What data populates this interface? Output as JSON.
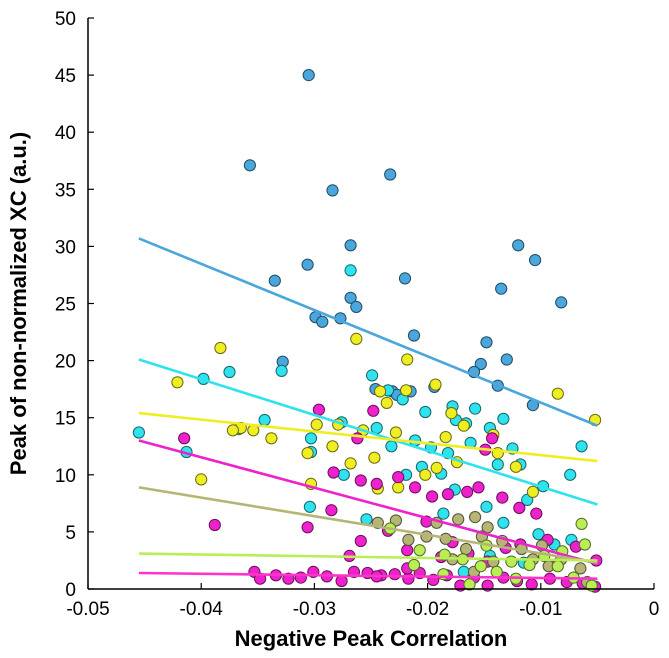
{
  "chart_data": {
    "type": "scatter",
    "title": "",
    "xlabel": "Negative Peak Correlation",
    "ylabel": "Peak of non-normalized XC (a.u.)",
    "xlim": [
      -0.05,
      0
    ],
    "ylim": [
      0,
      50
    ],
    "xticks": [
      -0.05,
      -0.04,
      -0.03,
      -0.02,
      -0.01,
      0
    ],
    "xtick_labels": [
      "-0.05",
      "-0.04",
      "-0.03",
      "-0.02",
      "-0.01",
      "0"
    ],
    "yticks": [
      0,
      5,
      10,
      15,
      20,
      25,
      30,
      35,
      40,
      45,
      50
    ],
    "ytick_labels": [
      "0",
      "5",
      "10",
      "15",
      "20",
      "25",
      "30",
      "35",
      "40",
      "45",
      "50"
    ],
    "grid": false,
    "legend": "none",
    "series": [
      {
        "color": "#4aa6dc",
        "fit_line": {
          "x": [
            -0.0455,
            -0.005
          ],
          "y": [
            30.7,
            14.3
          ]
        },
        "points": [
          [
            -0.0305,
            45
          ],
          [
            -0.0357,
            37.1
          ],
          [
            -0.0233,
            36.3
          ],
          [
            -0.0284,
            34.9
          ],
          [
            -0.0268,
            30.1
          ],
          [
            -0.0306,
            28.4
          ],
          [
            -0.012,
            30.1
          ],
          [
            -0.0105,
            28.8
          ],
          [
            -0.0335,
            27
          ],
          [
            -0.022,
            27.2
          ],
          [
            -0.0135,
            26.3
          ],
          [
            -0.0082,
            25.1
          ],
          [
            -0.0268,
            25.5
          ],
          [
            -0.0263,
            24.7
          ],
          [
            -0.0299,
            23.8
          ],
          [
            -0.0293,
            23.4
          ],
          [
            -0.0277,
            23.7
          ],
          [
            -0.0212,
            22.2
          ],
          [
            -0.0148,
            21.6
          ],
          [
            -0.013,
            20.1
          ],
          [
            -0.0153,
            19.7
          ],
          [
            -0.0328,
            19.9
          ],
          [
            -0.0159,
            19
          ],
          [
            -0.0194,
            17.7
          ],
          [
            -0.0246,
            17.5
          ],
          [
            -0.0231,
            17.3
          ],
          [
            -0.0227,
            17
          ],
          [
            -0.0138,
            17.8
          ],
          [
            -0.0107,
            16.1
          ],
          [
            -0.0215,
            17.3
          ]
        ]
      },
      {
        "color": "#2ee2ee",
        "fit_line": {
          "x": [
            -0.0455,
            -0.005
          ],
          "y": [
            20.1,
            7.4
          ]
        },
        "points": [
          [
            -0.0268,
            27.9
          ],
          [
            -0.0329,
            19.1
          ],
          [
            -0.0375,
            19
          ],
          [
            -0.0398,
            18.4
          ],
          [
            -0.0249,
            18.7
          ],
          [
            -0.0235,
            17.4
          ],
          [
            -0.0222,
            16.6
          ],
          [
            -0.0178,
            16
          ],
          [
            -0.0202,
            15.5
          ],
          [
            -0.0158,
            15.8
          ],
          [
            -0.0175,
            14.8
          ],
          [
            -0.0166,
            14.5
          ],
          [
            -0.0145,
            14.1
          ],
          [
            -0.0133,
            14.9
          ],
          [
            -0.0162,
            12.8
          ],
          [
            -0.0245,
            14.1
          ],
          [
            -0.0276,
            14.6
          ],
          [
            -0.0303,
            13.2
          ],
          [
            -0.0344,
            14.8
          ],
          [
            -0.0367,
            14
          ],
          [
            -0.0455,
            13.7
          ],
          [
            -0.0211,
            13
          ],
          [
            -0.0197,
            12.4
          ],
          [
            -0.0232,
            12.5
          ],
          [
            -0.0182,
            11.9
          ],
          [
            -0.0125,
            12.3
          ],
          [
            -0.0118,
            10.9
          ],
          [
            -0.0138,
            10.9
          ],
          [
            -0.0188,
            10.1
          ],
          [
            -0.0205,
            10.7
          ],
          [
            -0.0219,
            10
          ],
          [
            -0.0274,
            10
          ],
          [
            -0.0303,
            12
          ],
          [
            -0.0413,
            12
          ],
          [
            -0.0064,
            12.5
          ],
          [
            -0.0074,
            10
          ],
          [
            -0.0098,
            9
          ],
          [
            -0.0176,
            8.7
          ],
          [
            -0.0112,
            7.8
          ],
          [
            -0.0148,
            7.2
          ],
          [
            -0.0254,
            6.1
          ],
          [
            -0.0304,
            7.2
          ],
          [
            -0.0186,
            6.6
          ],
          [
            -0.0133,
            5.8
          ],
          [
            -0.0102,
            4.8
          ],
          [
            -0.0088,
            3.9
          ],
          [
            -0.0073,
            4.3
          ],
          [
            -0.0145,
            2.9
          ],
          [
            -0.0168,
            1.5
          ],
          [
            -0.0115,
            2.3
          ]
        ]
      },
      {
        "color": "#eeee22",
        "fit_line": {
          "x": [
            -0.0455,
            -0.005
          ],
          "y": [
            15.4,
            11.2
          ]
        },
        "points": [
          [
            -0.0383,
            21.1
          ],
          [
            -0.0421,
            18.1
          ],
          [
            -0.0263,
            21.9
          ],
          [
            -0.0218,
            20.1
          ],
          [
            -0.0219,
            17.4
          ],
          [
            -0.0242,
            17.3
          ],
          [
            -0.0193,
            17.9
          ],
          [
            -0.0236,
            16.3
          ],
          [
            -0.0179,
            15.4
          ],
          [
            -0.0168,
            14.3
          ],
          [
            -0.0228,
            13.7
          ],
          [
            -0.0257,
            13.9
          ],
          [
            -0.0279,
            14.4
          ],
          [
            -0.0298,
            14.4
          ],
          [
            -0.0365,
            14.1
          ],
          [
            -0.0372,
            13.9
          ],
          [
            -0.0354,
            13.9
          ],
          [
            -0.0338,
            13.2
          ],
          [
            -0.0184,
            13.3
          ],
          [
            -0.0142,
            13.5
          ],
          [
            -0.0138,
            11.9
          ],
          [
            -0.0122,
            10.7
          ],
          [
            -0.0192,
            10.6
          ],
          [
            -0.0202,
            10
          ],
          [
            -0.0247,
            11.5
          ],
          [
            -0.0268,
            11
          ],
          [
            -0.0284,
            12.5
          ],
          [
            -0.0306,
            11.9
          ],
          [
            -0.04,
            9.6
          ],
          [
            -0.0085,
            17.1
          ],
          [
            -0.0052,
            14.8
          ],
          [
            -0.0107,
            8.5
          ],
          [
            -0.0226,
            8.9
          ],
          [
            -0.0244,
            8.8
          ],
          [
            -0.0174,
            11.1
          ],
          [
            -0.0303,
            9.2
          ]
        ]
      },
      {
        "color": "#ee22cc",
        "fit_line": {
          "x": [
            -0.0455,
            -0.005
          ],
          "y": [
            13,
            2.2
          ]
        },
        "points": [
          [
            -0.0296,
            15.7
          ],
          [
            -0.0248,
            15.6
          ],
          [
            -0.0262,
            13.2
          ],
          [
            -0.0415,
            13.2
          ],
          [
            -0.0388,
            5.6
          ],
          [
            -0.0283,
            10.2
          ],
          [
            -0.0259,
            9.5
          ],
          [
            -0.0245,
            9.2
          ],
          [
            -0.0226,
            9.8
          ],
          [
            -0.0211,
            8.9
          ],
          [
            -0.0196,
            8.1
          ],
          [
            -0.0182,
            8.3
          ],
          [
            -0.0165,
            8.5
          ],
          [
            -0.0149,
            12.2
          ],
          [
            -0.0143,
            13.2
          ],
          [
            -0.0155,
            8.9
          ],
          [
            -0.0134,
            8
          ],
          [
            -0.0119,
            7.1
          ],
          [
            -0.0104,
            6.6
          ],
          [
            -0.0306,
            5.4
          ],
          [
            -0.0285,
            6.9
          ],
          [
            -0.0235,
            5.1
          ],
          [
            -0.0201,
            5.9
          ],
          [
            -0.0178,
            4.1
          ],
          [
            -0.0164,
            3.1
          ],
          [
            -0.0147,
            2.4
          ],
          [
            -0.0118,
            3.9
          ],
          [
            -0.0094,
            4.3
          ],
          [
            -0.0085,
            2.2
          ],
          [
            -0.0069,
            3.7
          ],
          [
            -0.0051,
            2.5
          ],
          [
            -0.0218,
            3.4
          ],
          [
            -0.0259,
            4.2
          ],
          [
            -0.0188,
            2.8
          ],
          [
            -0.0131,
            3.6
          ],
          [
            -0.0353,
            1.5
          ],
          [
            -0.0348,
            0.9
          ],
          [
            -0.0334,
            1.2
          ],
          [
            -0.0323,
            0.9
          ],
          [
            -0.0312,
            1
          ],
          [
            -0.0301,
            1.5
          ],
          [
            -0.0289,
            1.1
          ],
          [
            -0.0276,
            0.7
          ],
          [
            -0.0265,
            1.5
          ],
          [
            -0.0253,
            1.4
          ],
          [
            -0.0241,
            1.2
          ],
          [
            -0.0229,
            1.3
          ],
          [
            -0.0217,
            0.9
          ],
          [
            -0.0207,
            1.4
          ],
          [
            -0.0195,
            0.8
          ],
          [
            -0.0183,
            1.2
          ],
          [
            -0.0171,
            0.3
          ],
          [
            -0.0159,
            1
          ],
          [
            -0.0147,
            0.3
          ],
          [
            -0.0133,
            1
          ],
          [
            -0.0121,
            0.7
          ],
          [
            -0.0108,
            0.4
          ],
          [
            -0.0092,
            0.9
          ],
          [
            -0.0077,
            0.6
          ],
          [
            -0.0063,
            0.5
          ],
          [
            -0.0052,
            0.2
          ],
          [
            -0.0269,
            2.9
          ],
          [
            -0.0218,
            1.8
          ],
          [
            -0.0245,
            1.1
          ]
        ]
      },
      {
        "color": "#b5b575",
        "fit_line": {
          "x": [
            -0.0455,
            -0.005
          ],
          "y": [
            8.9,
            2.3
          ]
        },
        "points": [
          [
            -0.0244,
            5.8
          ],
          [
            -0.0228,
            6
          ],
          [
            -0.0192,
            5.8
          ],
          [
            -0.0173,
            6.1
          ],
          [
            -0.0158,
            6.3
          ],
          [
            -0.0147,
            5.4
          ],
          [
            -0.0217,
            4.3
          ],
          [
            -0.0201,
            4.6
          ],
          [
            -0.0184,
            4.4
          ],
          [
            -0.0166,
            3.5
          ],
          [
            -0.0152,
            4.6
          ],
          [
            -0.0134,
            4.2
          ],
          [
            -0.0117,
            3.5
          ],
          [
            -0.0099,
            3.8
          ],
          [
            -0.0082,
            2.6
          ],
          [
            -0.0065,
            1.8
          ],
          [
            -0.0059,
            0.6
          ],
          [
            -0.0178,
            2.6
          ],
          [
            -0.0142,
            2.4
          ],
          [
            -0.0107,
            2.6
          ],
          [
            -0.0093,
            2
          ],
          [
            -0.0159,
            1.5
          ]
        ]
      },
      {
        "color": "#b9ee55",
        "fit_line": {
          "x": [
            -0.0455,
            -0.005
          ],
          "y": [
            3.1,
            2.5
          ]
        },
        "points": [
          [
            -0.0233,
            5.3
          ],
          [
            -0.0207,
            3.4
          ],
          [
            -0.0185,
            3
          ],
          [
            -0.0169,
            2.6
          ],
          [
            -0.0153,
            2
          ],
          [
            -0.0139,
            1.5
          ],
          [
            -0.0126,
            2.4
          ],
          [
            -0.011,
            2.1
          ],
          [
            -0.0097,
            2.9
          ],
          [
            -0.0081,
            3.3
          ],
          [
            -0.0064,
            5.7
          ],
          [
            -0.0061,
            3.9
          ],
          [
            -0.0055,
            0.3
          ],
          [
            -0.0071,
            1
          ],
          [
            -0.0085,
            2
          ],
          [
            -0.0163,
            0.4
          ],
          [
            -0.0186,
            1.3
          ],
          [
            -0.0212,
            2.1
          ],
          [
            -0.0148,
            3.8
          ],
          [
            -0.0122,
            0.9
          ]
        ]
      },
      {
        "color": "#ff33cc",
        "fit_line": {
          "x": [
            -0.0455,
            -0.005
          ],
          "y": [
            1.4,
            0.9
          ]
        },
        "points": []
      }
    ]
  }
}
